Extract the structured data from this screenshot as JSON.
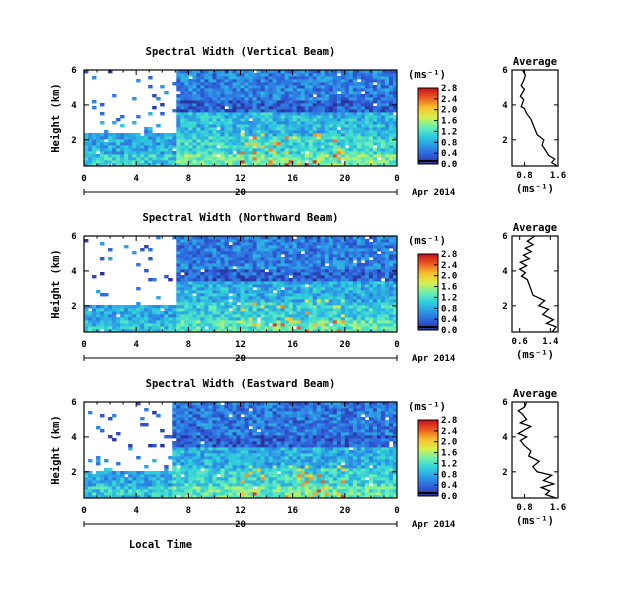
{
  "figure": {
    "bottom_xlabel": "Local Time",
    "colormap": [
      "#2b2f97",
      "#2f5fdc",
      "#2d9ae6",
      "#2fd0dc",
      "#6ff0b0",
      "#d8f04a",
      "#f6c02e",
      "#ef5a22",
      "#c8141e"
    ]
  },
  "chart_data": [
    {
      "type": "heatmap",
      "title": "Spectral Width (Vertical Beam)",
      "ylabel": "Height (km)",
      "yticks": [
        "2",
        "4",
        "6"
      ],
      "ylim": [
        0.5,
        6
      ],
      "xticks": [
        "0",
        "4",
        "8",
        "12",
        "16",
        "20",
        "0"
      ],
      "xlim": [
        0,
        24
      ],
      "date_axis": {
        "day": "20",
        "month_year": "Apr 2014"
      },
      "colorbar": {
        "unit": "(ms⁻¹)",
        "ticks": [
          "0.0",
          "0.4",
          "0.8",
          "1.2",
          "1.6",
          "2.0",
          "2.4",
          "2.8"
        ],
        "range": [
          0,
          2.8
        ]
      },
      "gap": {
        "x": [
          0,
          7.2
        ],
        "y_from": 2.4
      },
      "bands": [
        {
          "y": [
            0.5,
            1.2
          ],
          "v": 1.4
        },
        {
          "y": [
            1.2,
            2.2
          ],
          "v": 1.1
        },
        {
          "y": [
            2.2,
            3.6
          ],
          "v": 0.9
        },
        {
          "y": [
            3.6,
            4.2
          ],
          "v": 0.35
        },
        {
          "y": [
            4.2,
            6.0
          ],
          "v": 0.55
        }
      ]
    },
    {
      "type": "line",
      "title": "Average",
      "yticks": [
        "2",
        "4",
        "6"
      ],
      "ylim": [
        0.5,
        6
      ],
      "xticks": [
        "0.8",
        "1.6"
      ],
      "xlim": [
        0.5,
        1.6
      ],
      "xlabel": "(ms⁻¹)",
      "x": [
        1.58,
        1.45,
        1.52,
        1.38,
        1.3,
        1.22,
        1.26,
        1.1,
        1.05,
        1.0,
        0.95,
        0.85,
        0.8,
        0.72,
        0.75,
        0.78,
        0.7,
        0.75,
        0.8,
        0.72,
        0.78,
        0.82,
        0.75
      ],
      "y": [
        0.5,
        0.7,
        0.9,
        1.1,
        1.4,
        1.7,
        2.0,
        2.3,
        2.6,
        2.9,
        3.2,
        3.5,
        3.8,
        3.9,
        4.1,
        4.3,
        4.5,
        4.7,
        4.9,
        5.1,
        5.4,
        5.7,
        6.0
      ]
    },
    {
      "type": "heatmap",
      "title": "Spectral Width (Northward Beam)",
      "ylabel": "Height (km)",
      "yticks": [
        "2",
        "4",
        "6"
      ],
      "ylim": [
        0.5,
        6
      ],
      "xticks": [
        "0",
        "4",
        "8",
        "12",
        "16",
        "20",
        "0"
      ],
      "xlim": [
        0,
        24
      ],
      "date_axis": {
        "day": "20",
        "month_year": "Apr 2014"
      },
      "colorbar": {
        "unit": "(ms⁻¹)",
        "ticks": [
          "0.0",
          "0.4",
          "0.8",
          "1.2",
          "1.6",
          "2.0",
          "2.4",
          "2.8"
        ],
        "range": [
          0,
          2.8
        ]
      },
      "gap": {
        "x": [
          0,
          7.0
        ],
        "y_from": 2.0
      },
      "bands": [
        {
          "y": [
            0.5,
            1.2
          ],
          "v": 1.3
        },
        {
          "y": [
            1.2,
            2.2
          ],
          "v": 1.05
        },
        {
          "y": [
            2.2,
            3.5
          ],
          "v": 0.85
        },
        {
          "y": [
            3.5,
            4.1
          ],
          "v": 0.35
        },
        {
          "y": [
            4.1,
            6.0
          ],
          "v": 0.55
        }
      ]
    },
    {
      "type": "line",
      "title": "Average",
      "yticks": [
        "2",
        "4",
        "6"
      ],
      "ylim": [
        0.5,
        6
      ],
      "xticks": [
        "0.6",
        "1.4"
      ],
      "xlim": [
        0.4,
        1.6
      ],
      "xlabel": "(ms⁻¹)",
      "x": [
        1.45,
        1.55,
        1.3,
        1.48,
        1.2,
        1.35,
        1.1,
        1.25,
        0.95,
        0.9,
        0.85,
        0.8,
        0.65,
        0.75,
        0.6,
        0.78,
        0.62,
        0.85,
        0.7,
        0.9,
        0.75,
        0.95,
        0.8,
        1.0
      ],
      "y": [
        0.5,
        0.8,
        1.0,
        1.2,
        1.5,
        1.8,
        2.0,
        2.3,
        2.6,
        2.9,
        3.2,
        3.5,
        3.7,
        3.9,
        4.1,
        4.3,
        4.5,
        4.7,
        4.9,
        5.1,
        5.3,
        5.5,
        5.7,
        6.0
      ]
    },
    {
      "type": "heatmap",
      "title": "Spectral Width (Eastward Beam)",
      "ylabel": "Height (km)",
      "yticks": [
        "2",
        "4",
        "6"
      ],
      "ylim": [
        0.5,
        6
      ],
      "xticks": [
        "0",
        "4",
        "8",
        "12",
        "16",
        "20",
        "0"
      ],
      "xlim": [
        0,
        24
      ],
      "date_axis": {
        "day": "20",
        "month_year": "Apr 2014"
      },
      "colorbar": {
        "unit": "(ms⁻¹)",
        "ticks": [
          "0.0",
          "0.4",
          "0.8",
          "1.2",
          "1.6",
          "2.0",
          "2.4",
          "2.8"
        ],
        "range": [
          0,
          2.8
        ]
      },
      "gap": {
        "x": [
          0,
          6.8
        ],
        "y_from": 2.0
      },
      "bands": [
        {
          "y": [
            0.5,
            1.2
          ],
          "v": 1.35
        },
        {
          "y": [
            1.2,
            2.2
          ],
          "v": 1.1
        },
        {
          "y": [
            2.2,
            3.5
          ],
          "v": 0.85
        },
        {
          "y": [
            3.5,
            4.1
          ],
          "v": 0.35
        },
        {
          "y": [
            4.1,
            6.0
          ],
          "v": 0.5
        }
      ]
    },
    {
      "type": "line",
      "title": "Average",
      "yticks": [
        "2",
        "4",
        "6"
      ],
      "ylim": [
        0.5,
        6
      ],
      "xticks": [
        "0.8",
        "1.6"
      ],
      "xlim": [
        0.5,
        1.6
      ],
      "xlabel": "(ms⁻¹)",
      "x": [
        1.55,
        1.3,
        1.4,
        1.2,
        1.5,
        1.25,
        1.45,
        1.1,
        1.0,
        1.15,
        0.9,
        0.95,
        0.8,
        0.7,
        0.85,
        0.65,
        0.8,
        0.95,
        0.7,
        0.85,
        0.75,
        0.65,
        0.8,
        0.85
      ],
      "y": [
        0.5,
        0.7,
        0.9,
        1.1,
        1.3,
        1.5,
        1.8,
        2.0,
        2.3,
        2.6,
        2.9,
        3.2,
        3.5,
        3.8,
        4.0,
        4.2,
        4.4,
        4.6,
        4.8,
        5.0,
        5.3,
        5.5,
        5.7,
        6.0
      ]
    }
  ]
}
